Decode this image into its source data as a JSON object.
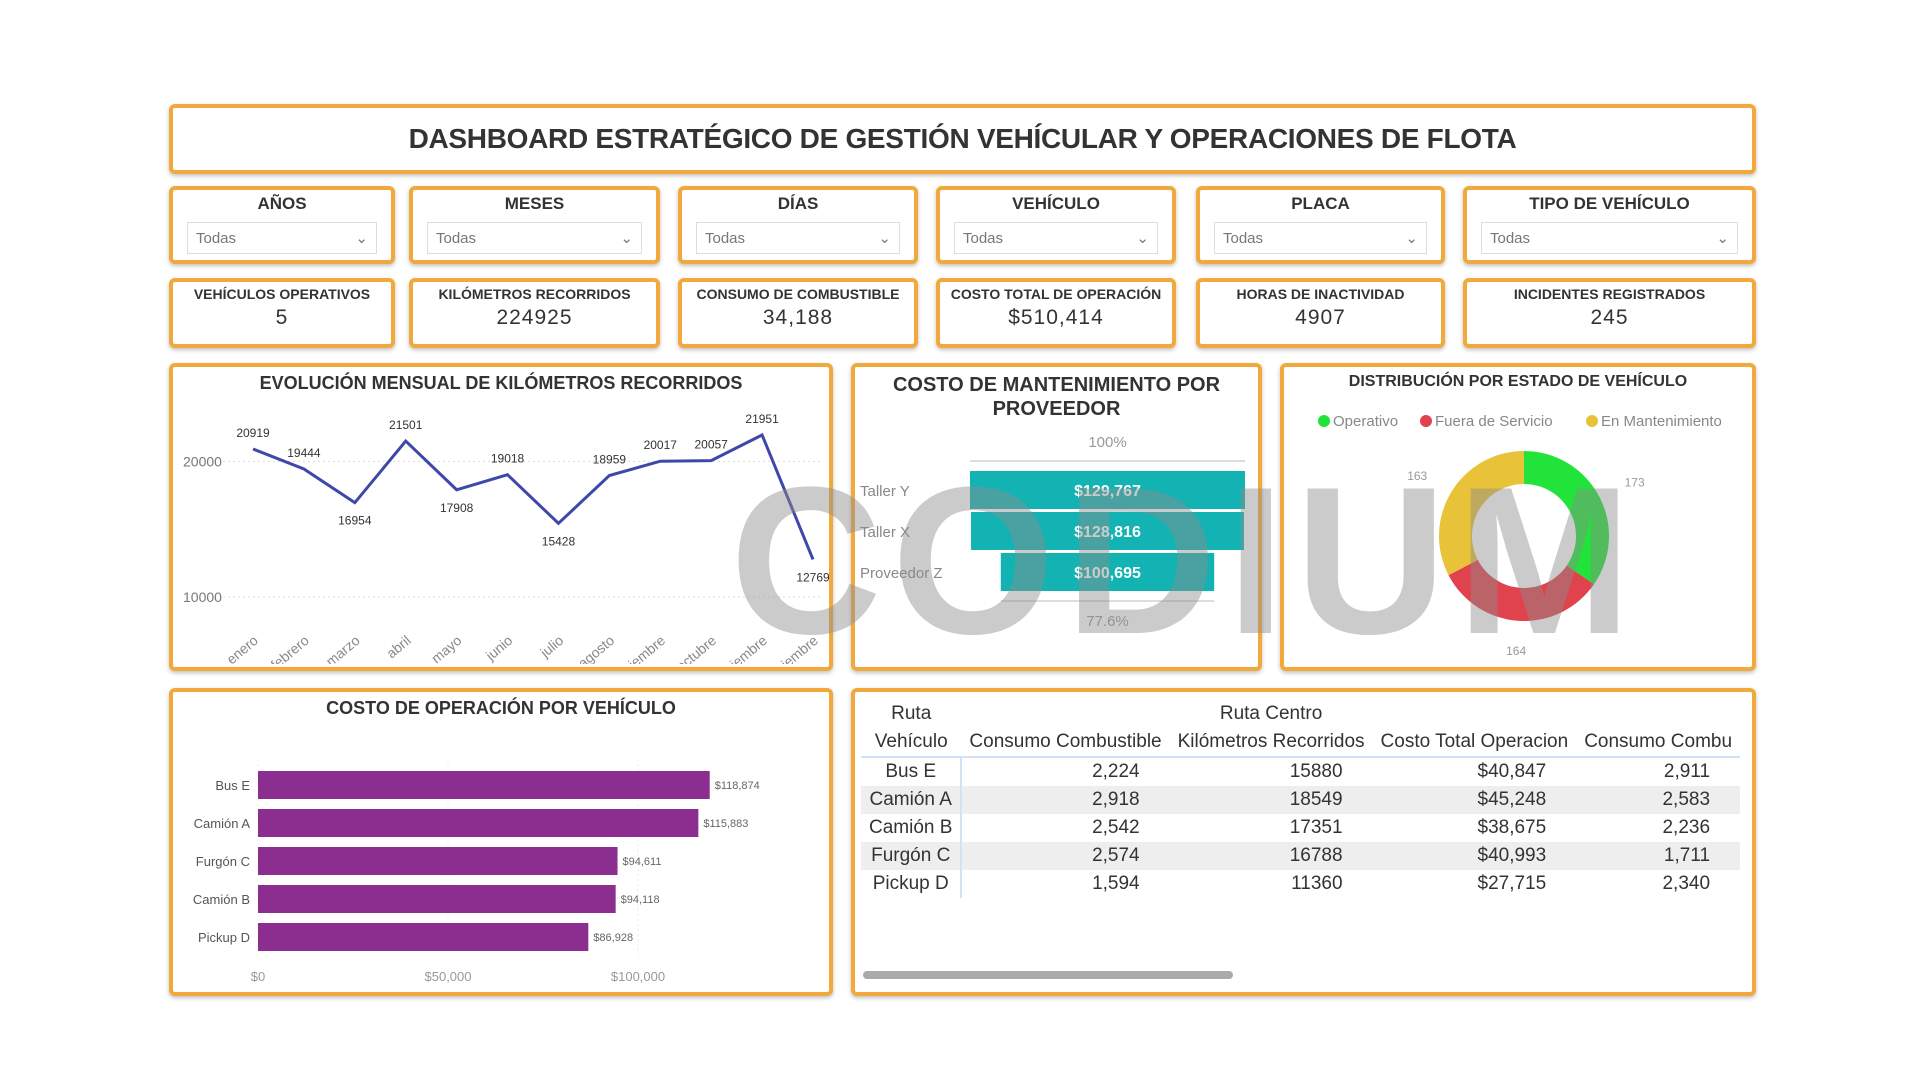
{
  "header": {
    "title": "DASHBOARD ESTRATÉGICO DE GESTIÓN VEHÍCULAR Y OPERACIONES DE FLOTA"
  },
  "filters": [
    {
      "label": "AÑOS",
      "value": "Todas"
    },
    {
      "label": "MESES",
      "value": "Todas"
    },
    {
      "label": "DÍAS",
      "value": "Todas"
    },
    {
      "label": "VEHÍCULO",
      "value": "Todas"
    },
    {
      "label": "PLACA",
      "value": "Todas"
    },
    {
      "label": "TIPO DE VEHÍCULO",
      "value": "Todas"
    }
  ],
  "kpis": [
    {
      "label": "VEHÍCULOS OPERATIVOS",
      "value": "5"
    },
    {
      "label": "KILÓMETROS RECORRIDOS",
      "value": "224925"
    },
    {
      "label": "CONSUMO DE COMBUSTIBLE",
      "value": "34,188"
    },
    {
      "label": "COSTO TOTAL DE OPERACIÓN",
      "value": "$510,414"
    },
    {
      "label": "HORAS DE INACTIVIDAD",
      "value": "4907"
    },
    {
      "label": "INCIDENTES REGISTRADOS",
      "value": "245"
    }
  ],
  "watermark": "CODIUM",
  "colors": {
    "border": "#f2a93b",
    "line": "#3f48a8",
    "funnel": "#13b3b3",
    "bar": "#8b2e8f",
    "operativo": "#22e33a",
    "fuera": "#e0424e",
    "mant": "#e8c33a"
  },
  "chart_data": [
    {
      "type": "line",
      "title": "EVOLUCIÓN MENSUAL DE KILÓMETROS RECORRIDOS",
      "categories": [
        "enero",
        "febrero",
        "marzo",
        "abril",
        "mayo",
        "junio",
        "julio",
        "agosto",
        "septiembre",
        "octubre",
        "noviembre",
        "diciembre"
      ],
      "values": [
        20919,
        19444,
        16954,
        21501,
        17908,
        19018,
        15428,
        18959,
        20017,
        20057,
        21951,
        12769
      ],
      "yticks": [
        10000,
        20000
      ],
      "ylim": [
        8000,
        23500
      ],
      "grid": true
    },
    {
      "type": "funnel",
      "title": "COSTO DE MANTENIMIENTO POR PROVEEDOR",
      "categories": [
        "Taller Y",
        "Taller X",
        "Proveedor Z"
      ],
      "values": [
        129767,
        128816,
        100695
      ],
      "labels": [
        "$129,767",
        "$128,816",
        "$100,695"
      ],
      "top_pct": "100%",
      "bottom_pct": "77.6%"
    },
    {
      "type": "pie",
      "title": "DISTRIBUCIÓN POR ESTADO DE VEHÍCULO",
      "categories": [
        "Operativo",
        "Fuera de Servicio",
        "En Mantenimiento"
      ],
      "values": [
        173,
        164,
        163
      ],
      "legend": "top"
    },
    {
      "type": "bar",
      "title": "COSTO DE OPERACIÓN POR VEHÍCULO",
      "categories": [
        "Bus E",
        "Camión A",
        "Furgón C",
        "Camión B",
        "Pickup D"
      ],
      "values": [
        118874,
        115883,
        94611,
        94118,
        86928
      ],
      "labels": [
        "$118,874",
        "$115,883",
        "$94,611",
        "$94,118",
        "$86,928"
      ],
      "xticks": [
        "$0",
        "$50,000",
        "$100,000"
      ],
      "xlim": [
        0,
        125000
      ]
    }
  ],
  "table": {
    "group_header": "Ruta",
    "group_name": "Ruta Centro",
    "columns": [
      "Vehículo",
      "Consumo Combustible",
      "Kilómetros Recorridos",
      "Costo Total Operacion",
      "Consumo Combu"
    ],
    "rows": [
      [
        "Bus E",
        "2,224",
        "15880",
        "$40,847",
        "2,911"
      ],
      [
        "Camión A",
        "2,918",
        "18549",
        "$45,248",
        "2,583"
      ],
      [
        "Camión B",
        "2,542",
        "17351",
        "$38,675",
        "2,236"
      ],
      [
        "Furgón C",
        "2,574",
        "16788",
        "$40,993",
        "1,711"
      ],
      [
        "Pickup D",
        "1,594",
        "11360",
        "$27,715",
        "2,340"
      ]
    ]
  }
}
